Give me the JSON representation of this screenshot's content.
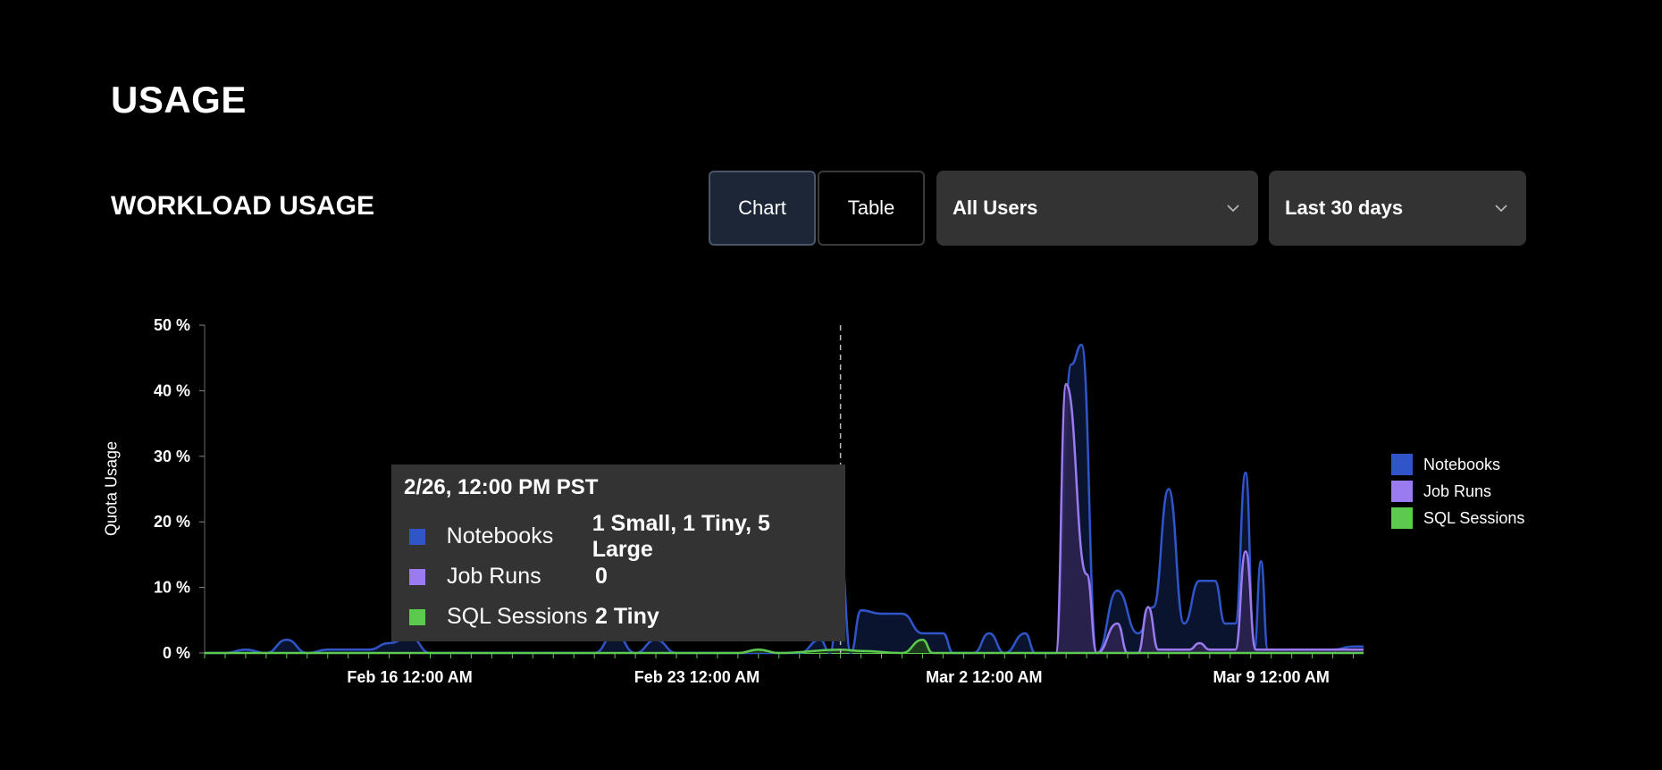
{
  "page": {
    "title": "USAGE"
  },
  "section": {
    "title": "WORKLOAD USAGE"
  },
  "view_toggle": {
    "chart_label": "Chart",
    "table_label": "Table",
    "selected": "Chart"
  },
  "filters": {
    "users_value": "All Users",
    "range_value": "Last 30 days"
  },
  "colors": {
    "notebooks": "#2f55c8",
    "job_runs": "#9b7cf0",
    "sql_sessions": "#5ec94f",
    "tooltip_bg": "#333333"
  },
  "icons": {
    "dropdown": "chevron-down-icon"
  },
  "tooltip": {
    "title": "2/26, 12:00 PM PST",
    "rows": [
      {
        "label": "Notebooks",
        "value": "1 Small, 1 Tiny, 5 Large"
      },
      {
        "label": "Job Runs",
        "value": "0"
      },
      {
        "label": "SQL Sessions",
        "value": "2 Tiny"
      }
    ]
  },
  "chart_data": {
    "type": "area",
    "ylabel": "Quota Usage",
    "ylim": [
      0,
      50
    ],
    "yticks": [
      "50 %",
      "40 %",
      "30 %",
      "20 %",
      "10 %",
      "0 %"
    ],
    "xticks": [
      "Feb 16 12:00 AM",
      "Feb 23 12:00 AM",
      "Mar 2 12:00 AM",
      "Mar 9 12:00 AM"
    ],
    "x_start": "2025-02-11T00:00",
    "x_end": "2025-03-11T06:00",
    "hover_x": "2025-02-26T12:00",
    "legend": [
      "Notebooks",
      "Job Runs",
      "SQL Sessions"
    ],
    "legend_position": "right",
    "series": [
      {
        "name": "Notebooks",
        "points": [
          [
            "2025-02-11T00:00",
            0
          ],
          [
            "2025-02-11T12:00",
            0
          ],
          [
            "2025-02-12T00:00",
            0.5
          ],
          [
            "2025-02-12T12:00",
            0
          ],
          [
            "2025-02-13T00:00",
            2
          ],
          [
            "2025-02-13T12:00",
            0
          ],
          [
            "2025-02-14T00:00",
            0.5
          ],
          [
            "2025-02-14T12:00",
            0.5
          ],
          [
            "2025-02-15T00:00",
            0.5
          ],
          [
            "2025-02-15T12:00",
            1.5
          ],
          [
            "2025-02-16T00:00",
            2.5
          ],
          [
            "2025-02-16T12:00",
            0
          ],
          [
            "2025-02-20T12:00",
            0
          ],
          [
            "2025-02-21T00:00",
            3
          ],
          [
            "2025-02-21T12:00",
            0
          ],
          [
            "2025-02-22T00:00",
            2
          ],
          [
            "2025-02-22T12:00",
            0
          ],
          [
            "2025-02-25T12:00",
            0
          ],
          [
            "2025-02-26T00:00",
            2
          ],
          [
            "2025-02-26T06:00",
            0
          ],
          [
            "2025-02-26T12:00",
            15.5
          ],
          [
            "2025-02-26T18:00",
            0
          ],
          [
            "2025-02-27T00:00",
            6.5
          ],
          [
            "2025-02-27T12:00",
            6
          ],
          [
            "2025-02-28T00:00",
            6
          ],
          [
            "2025-02-28T12:00",
            3
          ],
          [
            "2025-03-01T00:00",
            3
          ],
          [
            "2025-03-01T06:00",
            0
          ],
          [
            "2025-03-01T18:00",
            0
          ],
          [
            "2025-03-02T03:00",
            3
          ],
          [
            "2025-03-02T12:00",
            0
          ],
          [
            "2025-03-03T00:00",
            3
          ],
          [
            "2025-03-03T06:00",
            0
          ],
          [
            "2025-03-03T18:00",
            0
          ],
          [
            "2025-03-04T03:00",
            44
          ],
          [
            "2025-03-04T09:00",
            47
          ],
          [
            "2025-03-04T18:00",
            0
          ],
          [
            "2025-03-05T06:00",
            9.5
          ],
          [
            "2025-03-05T18:00",
            3
          ],
          [
            "2025-03-06T03:00",
            7
          ],
          [
            "2025-03-06T12:00",
            25
          ],
          [
            "2025-03-06T21:00",
            4.5
          ],
          [
            "2025-03-07T06:00",
            11
          ],
          [
            "2025-03-07T15:00",
            11
          ],
          [
            "2025-03-07T21:00",
            4.5
          ],
          [
            "2025-03-08T03:00",
            4.5
          ],
          [
            "2025-03-08T09:00",
            27.5
          ],
          [
            "2025-03-08T14:00",
            0.5
          ],
          [
            "2025-03-08T18:00",
            14
          ],
          [
            "2025-03-08T22:00",
            0.5
          ],
          [
            "2025-03-10T12:00",
            0.5
          ],
          [
            "2025-03-11T00:00",
            1
          ],
          [
            "2025-03-11T06:00",
            1
          ]
        ]
      },
      {
        "name": "Job Runs",
        "points": [
          [
            "2025-03-03T18:00",
            0
          ],
          [
            "2025-03-04T00:00",
            41
          ],
          [
            "2025-03-04T12:00",
            12
          ],
          [
            "2025-03-04T18:00",
            0
          ],
          [
            "2025-03-05T06:00",
            4.5
          ],
          [
            "2025-03-05T12:00",
            0
          ],
          [
            "2025-03-05T18:00",
            0
          ],
          [
            "2025-03-06T00:00",
            7
          ],
          [
            "2025-03-06T06:00",
            0.5
          ],
          [
            "2025-03-07T00:00",
            0.5
          ],
          [
            "2025-03-07T06:00",
            1.5
          ],
          [
            "2025-03-07T12:00",
            0.5
          ],
          [
            "2025-03-08T03:00",
            0.5
          ],
          [
            "2025-03-08T09:00",
            15.5
          ],
          [
            "2025-03-08T15:00",
            0.5
          ],
          [
            "2025-03-11T06:00",
            0.5
          ]
        ]
      },
      {
        "name": "SQL Sessions",
        "points": [
          [
            "2025-02-11T00:00",
            0
          ],
          [
            "2025-02-24T00:00",
            0
          ],
          [
            "2025-02-24T12:00",
            0.5
          ],
          [
            "2025-02-25T00:00",
            0
          ],
          [
            "2025-02-26T12:00",
            0.5
          ],
          [
            "2025-02-27T00:00",
            0.3
          ],
          [
            "2025-02-28T00:00",
            0
          ],
          [
            "2025-02-28T12:00",
            2
          ],
          [
            "2025-02-28T18:00",
            0
          ],
          [
            "2025-03-11T06:00",
            0
          ]
        ]
      }
    ]
  }
}
